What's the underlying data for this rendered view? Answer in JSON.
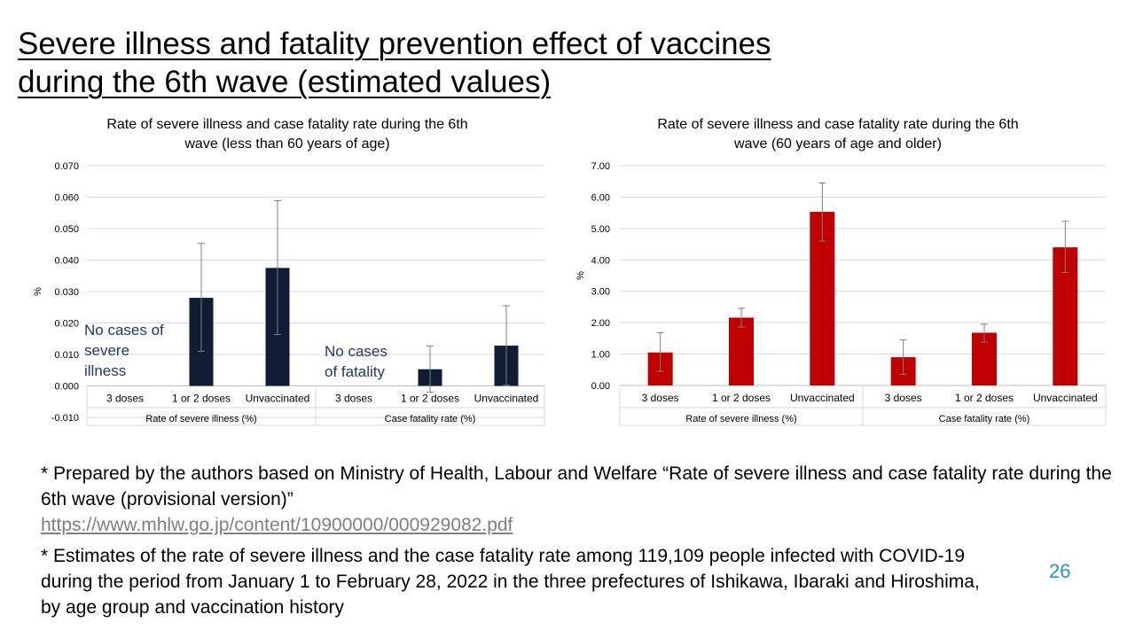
{
  "title": {
    "line1": "Severe illness and fatality prevention effect of vaccines",
    "line2": "during the 6th wave (estimated values)"
  },
  "chart_data": [
    {
      "type": "bar",
      "title": "Rate of severe illness and case fatality rate during the 6th wave (less than 60 years of age)",
      "title_lines": [
        "Rate of severe illness and case fatality rate during the 6th",
        "wave (less than 60 years of age)"
      ],
      "ylabel": "%",
      "ylim": [
        -0.01,
        0.07
      ],
      "yticks": [
        -0.01,
        0,
        0.01,
        0.02,
        0.03,
        0.04,
        0.05,
        0.06,
        0.07
      ],
      "ytick_labels": [
        "-0.010",
        "0.000",
        "0.010",
        "0.020",
        "0.030",
        "0.040",
        "0.050",
        "0.060",
        "0.070"
      ],
      "grid": true,
      "bar_color": "#0f1c33",
      "groups": [
        {
          "label": "Rate of severe illness (%)",
          "categories": [
            "3 doses",
            "1 or 2 doses",
            "Unvaccinated"
          ]
        },
        {
          "label": "Case fatality rate (%)",
          "categories": [
            "3 doses",
            "1 or 2 doses",
            "Unvaccinated"
          ]
        }
      ],
      "values": [
        null,
        0.028,
        0.0375,
        null,
        0.0053,
        0.0128
      ],
      "error_low": [
        null,
        0.011,
        0.0163,
        null,
        -0.002,
        0.0002
      ],
      "error_high": [
        null,
        0.0453,
        0.0589,
        null,
        0.0127,
        0.0255
      ],
      "annotations": [
        {
          "lines": [
            "No cases of",
            "severe",
            "illness"
          ],
          "color": "#1f3864"
        },
        {
          "lines": [
            "No cases",
            "of fatality"
          ],
          "color": "#1f3864"
        }
      ]
    },
    {
      "type": "bar",
      "title": "Rate of severe illness and case fatality rate during the 6th wave (60 years of age and older)",
      "title_lines": [
        "Rate of severe illness and case fatality rate during the 6th",
        "wave (60 years of age and older)"
      ],
      "ylabel": "%",
      "ylim": [
        0,
        7
      ],
      "yticks": [
        0,
        1,
        2,
        3,
        4,
        5,
        6,
        7
      ],
      "ytick_labels": [
        "0.00",
        "1.00",
        "2.00",
        "3.00",
        "4.00",
        "5.00",
        "6.00",
        "7.00"
      ],
      "grid": true,
      "bar_color": "#c00000",
      "groups": [
        {
          "label": "Rate of severe illness (%)",
          "categories": [
            "3 doses",
            "1 or 2 doses",
            "Unvaccinated"
          ]
        },
        {
          "label": "Case fatality rate (%)",
          "categories": [
            "3 doses",
            "1 or 2 doses",
            "Unvaccinated"
          ]
        }
      ],
      "values": [
        1.05,
        2.16,
        5.53,
        0.9,
        1.68,
        4.4
      ],
      "error_low": [
        0.45,
        1.86,
        4.6,
        0.35,
        1.38,
        3.6
      ],
      "error_high": [
        1.68,
        2.46,
        6.45,
        1.45,
        1.95,
        5.23
      ]
    }
  ],
  "notes": {
    "note1": "* Prepared by the authors based on Ministry of Health, Labour and Welfare “Rate of severe illness and case fatality rate during the 6th wave (provisional version)”",
    "link": "https://www.mhlw.go.jp/content/10900000/000929082.pdf",
    "note2": "* Estimates of the rate of severe illness and the case fatality rate among 119,109 people infected with COVID-19 during the period from January 1 to February 28, 2022 in the three prefectures of Ishikawa, Ibaraki and Hiroshima, by age group and vaccination history"
  },
  "page_number": "26",
  "colors": {
    "link": "#7f7f7f",
    "page_number": "#2e8fc9"
  }
}
